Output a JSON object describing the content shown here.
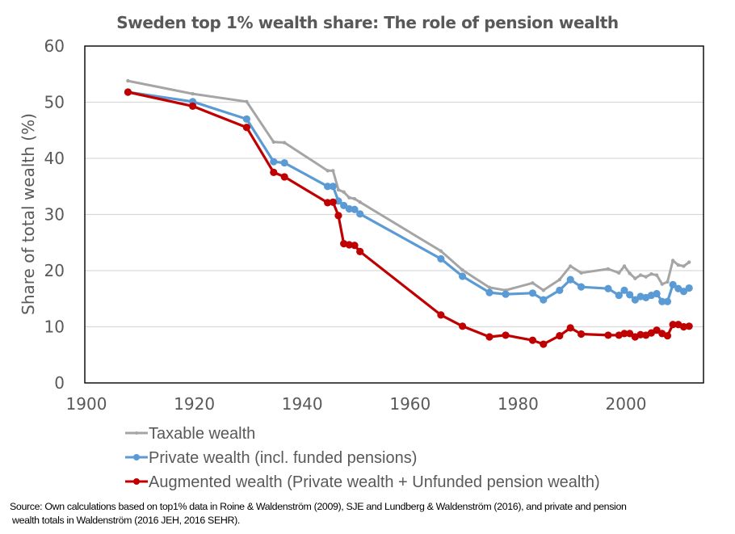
{
  "chart_data": {
    "type": "line",
    "title": "Sweden top 1% wealth share: The role of pension wealth",
    "xlabel": "",
    "ylabel": "Share of total wealth (%)",
    "xlim": [
      1900,
      2015
    ],
    "ylim": [
      0,
      60
    ],
    "xticks": [
      1900,
      1920,
      1940,
      1960,
      1980,
      2000
    ],
    "yticks": [
      0,
      10,
      20,
      30,
      40,
      50,
      60
    ],
    "grid": "horizontal",
    "legend_position": "bottom",
    "series": [
      {
        "name": "Taxable wealth",
        "color": "#a5a5a5",
        "marker": "small",
        "x": [
          1908,
          1920,
          1930,
          1935,
          1937,
          1945,
          1946,
          1947,
          1948,
          1949,
          1950,
          1951,
          1966,
          1970,
          1975,
          1978,
          1983,
          1985,
          1988,
          1990,
          1992,
          1997,
          1999,
          2000,
          2001,
          2002,
          2003,
          2004,
          2005,
          2006,
          2007,
          2008,
          2009,
          2010,
          2011,
          2012
        ],
        "y": [
          53.8,
          51.5,
          50.1,
          42.9,
          42.8,
          37.8,
          37.8,
          34.4,
          34.0,
          33.0,
          32.8,
          32.2,
          23.5,
          20.1,
          17.0,
          16.5,
          17.8,
          16.5,
          18.4,
          20.8,
          19.6,
          20.3,
          19.6,
          20.8,
          19.5,
          18.6,
          19.2,
          18.9,
          19.4,
          19.2,
          17.6,
          18.0,
          21.8,
          21.0,
          20.8,
          21.5
        ]
      },
      {
        "name": "Private wealth (incl. funded pensions)",
        "color": "#5b9bd5",
        "marker": "circle",
        "x": [
          1908,
          1920,
          1930,
          1935,
          1937,
          1945,
          1946,
          1947,
          1948,
          1949,
          1950,
          1951,
          1966,
          1970,
          1975,
          1978,
          1983,
          1985,
          1988,
          1990,
          1992,
          1997,
          1999,
          2000,
          2001,
          2002,
          2003,
          2004,
          2005,
          2006,
          2007,
          2008,
          2009,
          2010,
          2011,
          2012
        ],
        "y": [
          51.8,
          50.1,
          47.0,
          39.4,
          39.2,
          35.0,
          35.0,
          32.4,
          31.6,
          31.0,
          30.9,
          30.1,
          22.1,
          19.0,
          16.1,
          15.8,
          16.0,
          14.8,
          16.5,
          18.4,
          17.1,
          16.8,
          15.6,
          16.5,
          15.7,
          14.8,
          15.4,
          15.2,
          15.6,
          15.9,
          14.5,
          14.5,
          17.5,
          16.8,
          16.3,
          16.9
        ]
      },
      {
        "name": "Augmented wealth (Private wealth + Unfunded pension wealth)",
        "color": "#c00000",
        "marker": "circle",
        "x": [
          1908,
          1920,
          1930,
          1935,
          1937,
          1945,
          1946,
          1947,
          1948,
          1949,
          1950,
          1951,
          1966,
          1970,
          1975,
          1978,
          1983,
          1985,
          1988,
          1990,
          1992,
          1997,
          1999,
          2000,
          2001,
          2002,
          2003,
          2004,
          2005,
          2006,
          2007,
          2008,
          2009,
          2010,
          2011,
          2012
        ],
        "y": [
          51.8,
          49.3,
          45.5,
          37.5,
          36.7,
          32.1,
          32.2,
          29.8,
          24.8,
          24.6,
          24.5,
          23.4,
          12.1,
          10.1,
          8.2,
          8.5,
          7.6,
          6.9,
          8.4,
          9.8,
          8.7,
          8.5,
          8.5,
          8.8,
          8.8,
          8.2,
          8.6,
          8.5,
          8.9,
          9.4,
          8.8,
          8.4,
          10.4,
          10.4,
          10.0,
          10.1
        ]
      }
    ]
  },
  "colors": {
    "text": "#595959",
    "grid": "#d9d9d9",
    "frame": "#000000"
  },
  "source": {
    "line1": "Source: Own calculations based on top1% data in Roine & Waldenström (2009), SJE and Lundberg & Waldenström (2016), and private and pension",
    "line2": "wealth totals in Waldenström (2016 JEH, 2016  SEHR)."
  }
}
